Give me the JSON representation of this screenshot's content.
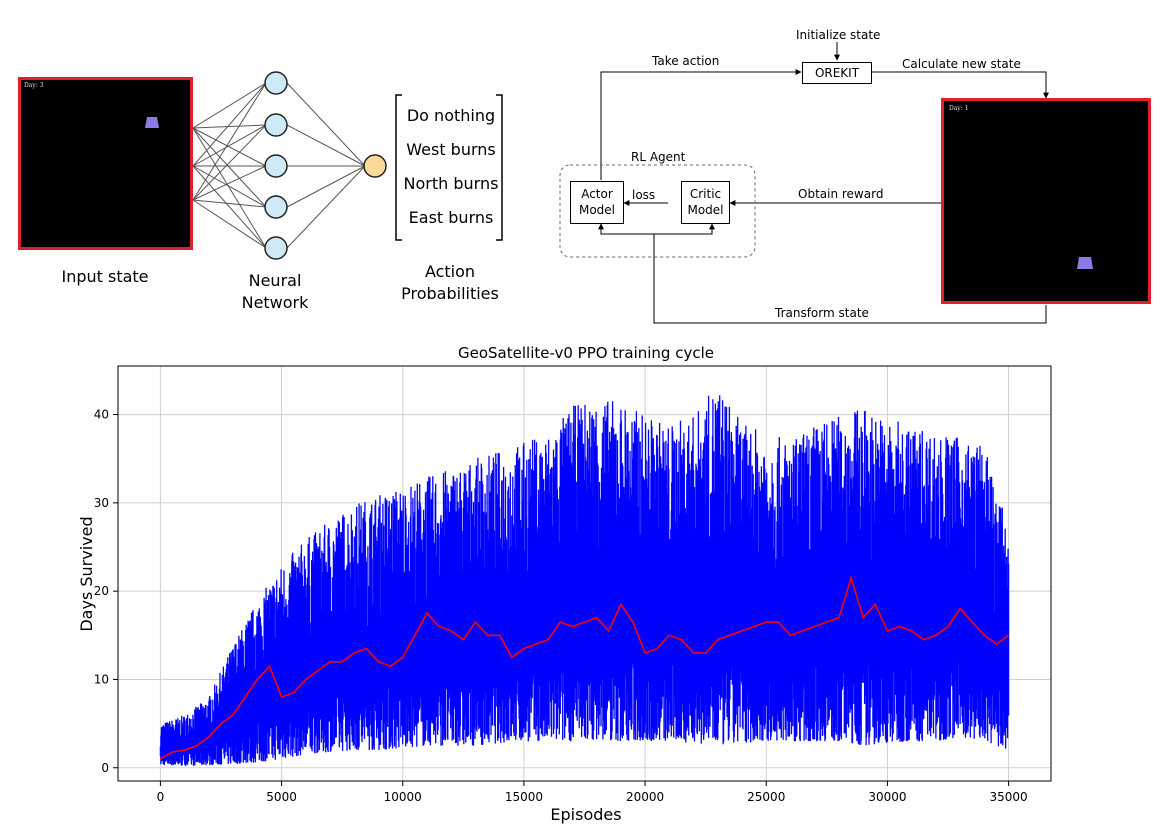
{
  "left_diagram": {
    "input_day_label": "Day: 3",
    "input_caption": "Input state",
    "network_caption_line1": "Neural",
    "network_caption_line2": "Network",
    "actions": [
      "Do nothing",
      "West burns",
      "North burns",
      "East burns"
    ],
    "actions_caption_line1": "Action",
    "actions_caption_line2": "Probabilities",
    "input_node_count": 5,
    "colors": {
      "node_fill": "#cfeaf7",
      "output_fill": "#fcd99a",
      "border": "#e0202a",
      "satellite": "#8b7be6"
    }
  },
  "right_diagram": {
    "initialize_state": "Initialize state",
    "orekit": "OREKIT",
    "take_action": "Take action",
    "calculate_new_state": "Calculate new state",
    "rl_agent": "RL Agent",
    "actor_line1": "Actor",
    "actor_line2": "Model",
    "critic_line1": "Critic",
    "critic_line2": "Model",
    "loss": "loss",
    "obtain_reward": "Obtain reward",
    "transform_state": "Transform state",
    "env_day_label": "Day: 1"
  },
  "chart_data": {
    "type": "line",
    "title": "GeoSatellite-v0 PPO training cycle",
    "xlabel": "Episodes",
    "ylabel": "Days Survived",
    "xlim": [
      -1750,
      36750
    ],
    "ylim": [
      -1.5,
      45.5
    ],
    "xticks": [
      0,
      5000,
      10000,
      15000,
      20000,
      25000,
      30000,
      35000
    ],
    "yticks": [
      0,
      10,
      20,
      30,
      40
    ],
    "grid": true,
    "series": [
      {
        "style": "raw episode values",
        "color": "#0000ff",
        "x": [
          0,
          1000,
          2000,
          3000,
          4000,
          5000,
          6000,
          7000,
          8000,
          9000,
          10000,
          11000,
          12000,
          13000,
          14000,
          15000,
          16000,
          17000,
          18000,
          19000,
          20000,
          21000,
          22000,
          23000,
          24000,
          25000,
          26000,
          27000,
          28000,
          29000,
          30000,
          31000,
          32000,
          33000,
          34000,
          35000
        ],
        "lower": [
          0.3,
          0.2,
          0.3,
          0.4,
          0.6,
          1,
          1.5,
          1.8,
          2,
          2,
          2.2,
          2.5,
          2.5,
          2.5,
          2.8,
          3,
          3,
          3,
          3.2,
          3,
          3,
          3,
          2.8,
          2.5,
          2.8,
          3,
          3,
          3,
          3,
          2.5,
          2.8,
          3,
          3,
          3.5,
          3,
          2
        ],
        "upper": [
          5,
          6,
          8,
          14,
          19,
          23,
          26,
          28,
          30,
          31,
          32,
          33,
          34,
          35,
          36,
          37,
          38,
          41,
          42,
          41.5,
          40,
          39,
          40,
          43.5,
          39,
          38,
          37,
          39,
          40,
          41,
          39.5,
          39,
          38,
          37.5,
          36.5,
          27
        ]
      },
      {
        "name": "",
        "style": "rolling mean",
        "color": "#ff0000",
        "x": [
          0,
          500,
          1000,
          1500,
          2000,
          2500,
          3000,
          3500,
          4000,
          4500,
          5000,
          5500,
          6000,
          6500,
          7000,
          7500,
          8000,
          8500,
          9000,
          9500,
          10000,
          10500,
          11000,
          11500,
          12000,
          12500,
          13000,
          13500,
          14000,
          14500,
          15000,
          15500,
          16000,
          16500,
          17000,
          17500,
          18000,
          18500,
          19000,
          19500,
          20000,
          20500,
          21000,
          21500,
          22000,
          22500,
          23000,
          23500,
          24000,
          24500,
          25000,
          25500,
          26000,
          26500,
          27000,
          27500,
          28000,
          28500,
          29000,
          29500,
          30000,
          30500,
          31000,
          31500,
          32000,
          32500,
          33000,
          33500,
          34000,
          34500,
          35000
        ],
        "y": [
          1,
          1.8,
          2,
          2.5,
          3.5,
          5,
          6,
          8,
          10,
          11.5,
          8,
          8.5,
          10,
          11,
          12,
          12,
          13,
          13.5,
          12,
          11.5,
          12.5,
          15,
          17.5,
          16,
          15.5,
          14.5,
          16.5,
          15,
          15,
          12.5,
          13.5,
          14,
          14.5,
          16.5,
          16,
          16.5,
          17,
          15.5,
          18.5,
          16.5,
          13,
          13.5,
          15,
          14.5,
          13,
          13,
          14.5,
          15,
          15.5,
          16,
          16.5,
          16.5,
          15,
          15.5,
          16,
          16.5,
          17,
          21.5,
          17,
          18.5,
          15.5,
          16,
          15.5,
          14.5,
          15,
          16,
          18,
          16.5,
          15,
          14,
          15
        ]
      }
    ]
  }
}
